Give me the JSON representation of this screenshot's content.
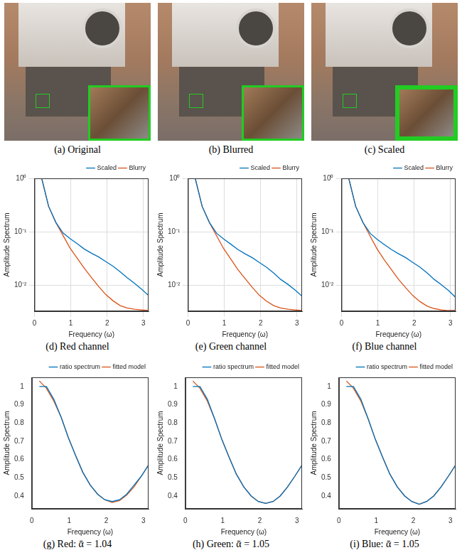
{
  "images": [
    {
      "caption": "(a) Original"
    },
    {
      "caption": "(b) Blurred"
    },
    {
      "caption": "(c) Scaled"
    }
  ],
  "chart_data": [
    {
      "type": "line",
      "caption": "(d) Red channel",
      "x_label": "Frequency (ω)",
      "y_label": "Amplitude Spectrum",
      "x": [
        0.2,
        0.39,
        0.59,
        0.79,
        0.98,
        1.18,
        1.37,
        1.57,
        1.77,
        1.96,
        2.16,
        2.36,
        2.55,
        2.75,
        2.95,
        3.14
      ],
      "series": [
        {
          "name": "Scaled",
          "color": "#0072bd",
          "values": [
            1.0,
            0.3,
            0.15,
            0.095,
            0.075,
            0.06,
            0.048,
            0.04,
            0.034,
            0.028,
            0.023,
            0.018,
            0.014,
            0.011,
            0.0085,
            0.0065
          ]
        },
        {
          "name": "Blurry",
          "color": "#d95319",
          "values": [
            1.0,
            0.3,
            0.15,
            0.085,
            0.05,
            0.032,
            0.021,
            0.014,
            0.0095,
            0.0068,
            0.0052,
            0.0042,
            0.0038,
            0.0036,
            0.0035,
            0.0034
          ]
        }
      ],
      "xlim": [
        0,
        3.14
      ],
      "xticks": [
        0,
        1,
        2,
        3
      ],
      "ylim": [
        0.0033,
        1
      ],
      "yticks": [
        {
          "value": 0.01,
          "label": "10⁻²"
        },
        {
          "value": 0.1,
          "label": "10⁻¹"
        },
        {
          "value": 1,
          "label": "10⁰"
        }
      ],
      "log": "y",
      "grid": true,
      "legend": "top"
    },
    {
      "type": "line",
      "caption": "(e) Green channel",
      "x_label": "Frequency (ω)",
      "y_label": "Amplitude Spectrum",
      "x": [
        0.2,
        0.39,
        0.59,
        0.79,
        0.98,
        1.18,
        1.37,
        1.57,
        1.77,
        1.96,
        2.16,
        2.36,
        2.55,
        2.75,
        2.95,
        3.14
      ],
      "series": [
        {
          "name": "Scaled",
          "color": "#0072bd",
          "values": [
            1.0,
            0.3,
            0.15,
            0.094,
            0.074,
            0.059,
            0.047,
            0.039,
            0.033,
            0.027,
            0.022,
            0.017,
            0.013,
            0.0105,
            0.0082,
            0.0063
          ]
        },
        {
          "name": "Blurry",
          "color": "#d95319",
          "values": [
            1.0,
            0.3,
            0.15,
            0.084,
            0.049,
            0.031,
            0.02,
            0.0135,
            0.0092,
            0.0066,
            0.0051,
            0.0042,
            0.0038,
            0.0036,
            0.0035,
            0.0034
          ]
        }
      ],
      "xlim": [
        0,
        3.14
      ],
      "xticks": [
        0,
        1,
        2,
        3
      ],
      "ylim": [
        0.0033,
        1
      ],
      "yticks": [
        {
          "value": 0.01,
          "label": "10⁻²"
        },
        {
          "value": 0.1,
          "label": "10⁻¹"
        },
        {
          "value": 1,
          "label": "10⁰"
        }
      ],
      "log": "y",
      "grid": true,
      "legend": "top"
    },
    {
      "type": "line",
      "caption": "(f) Blue channel",
      "x_label": "Frequency (ω)",
      "y_label": "Amplitude Spectrum",
      "x": [
        0.2,
        0.39,
        0.59,
        0.79,
        0.98,
        1.18,
        1.37,
        1.57,
        1.77,
        1.96,
        2.16,
        2.36,
        2.55,
        2.75,
        2.95,
        3.14
      ],
      "series": [
        {
          "name": "Scaled",
          "color": "#0072bd",
          "values": [
            1.0,
            0.3,
            0.15,
            0.094,
            0.073,
            0.058,
            0.047,
            0.039,
            0.033,
            0.027,
            0.022,
            0.017,
            0.013,
            0.0103,
            0.008,
            0.006
          ]
        },
        {
          "name": "Blurry",
          "color": "#d95319",
          "values": [
            1.0,
            0.3,
            0.15,
            0.083,
            0.048,
            0.03,
            0.02,
            0.013,
            0.009,
            0.0065,
            0.005,
            0.0041,
            0.0037,
            0.0035,
            0.0034,
            0.0034
          ]
        }
      ],
      "xlim": [
        0,
        3.14
      ],
      "xticks": [
        0,
        1,
        2,
        3
      ],
      "ylim": [
        0.0033,
        1
      ],
      "yticks": [
        {
          "value": 0.01,
          "label": "10⁻²"
        },
        {
          "value": 0.1,
          "label": "10⁻¹"
        },
        {
          "value": 1,
          "label": "10⁰"
        }
      ],
      "log": "y",
      "grid": true,
      "legend": "top"
    },
    {
      "type": "line",
      "caption": "(g) Red: ᾱ = 1.04",
      "x_label": "Frequency (ω)",
      "y_label": "Amplitude Spectrum",
      "x": [
        0.2,
        0.39,
        0.59,
        0.79,
        0.98,
        1.18,
        1.37,
        1.57,
        1.77,
        1.96,
        2.16,
        2.36,
        2.55,
        2.75,
        2.95,
        3.14
      ],
      "series": [
        {
          "name": "ratio spectrum",
          "color": "#0072bd",
          "values": [
            1.0,
            1.0,
            0.93,
            0.83,
            0.72,
            0.62,
            0.53,
            0.46,
            0.41,
            0.38,
            0.37,
            0.38,
            0.41,
            0.46,
            0.51,
            0.57
          ]
        },
        {
          "name": "fitted model",
          "color": "#d95319",
          "values": [
            1.03,
            0.99,
            0.92,
            0.83,
            0.72,
            0.62,
            0.53,
            0.46,
            0.41,
            0.38,
            0.365,
            0.375,
            0.405,
            0.45,
            0.51,
            0.57
          ]
        }
      ],
      "xlim": [
        0,
        3.14
      ],
      "xticks": [
        0,
        1,
        2,
        3
      ],
      "ylim": [
        0.33,
        1.05
      ],
      "yticks": [
        0.4,
        0.5,
        0.6,
        0.7,
        0.8,
        0.9,
        1
      ],
      "grid": false,
      "legend": "top"
    },
    {
      "type": "line",
      "caption": "(h) Green: ᾱ = 1.05",
      "x_label": "Frequency (ω)",
      "y_label": "Amplitude Spectrum",
      "x": [
        0.2,
        0.39,
        0.59,
        0.79,
        0.98,
        1.18,
        1.37,
        1.57,
        1.77,
        1.96,
        2.16,
        2.36,
        2.55,
        2.75,
        2.95,
        3.14
      ],
      "series": [
        {
          "name": "ratio spectrum",
          "color": "#0072bd",
          "values": [
            1.0,
            1.0,
            0.93,
            0.82,
            0.71,
            0.61,
            0.52,
            0.45,
            0.4,
            0.37,
            0.36,
            0.37,
            0.4,
            0.45,
            0.51,
            0.57
          ]
        },
        {
          "name": "fitted model",
          "color": "#d95319",
          "values": [
            1.03,
            0.99,
            0.92,
            0.82,
            0.71,
            0.61,
            0.52,
            0.45,
            0.4,
            0.37,
            0.36,
            0.37,
            0.4,
            0.45,
            0.51,
            0.57
          ]
        }
      ],
      "xlim": [
        0,
        3.14
      ],
      "xticks": [
        0,
        1,
        2,
        3
      ],
      "ylim": [
        0.33,
        1.05
      ],
      "yticks": [
        0.4,
        0.5,
        0.6,
        0.7,
        0.8,
        0.9,
        1
      ],
      "grid": false,
      "legend": "top"
    },
    {
      "type": "line",
      "caption": "(i) Blue: ᾱ = 1.05",
      "x_label": "Frequency (ω)",
      "y_label": "Amplitude Spectrum",
      "x": [
        0.2,
        0.39,
        0.59,
        0.79,
        0.98,
        1.18,
        1.37,
        1.57,
        1.77,
        1.96,
        2.16,
        2.36,
        2.55,
        2.75,
        2.95,
        3.14
      ],
      "series": [
        {
          "name": "ratio spectrum",
          "color": "#0072bd",
          "values": [
            1.0,
            1.0,
            0.93,
            0.82,
            0.71,
            0.61,
            0.52,
            0.45,
            0.4,
            0.37,
            0.355,
            0.37,
            0.4,
            0.45,
            0.51,
            0.57
          ]
        },
        {
          "name": "fitted model",
          "color": "#d95319",
          "values": [
            1.03,
            0.99,
            0.92,
            0.82,
            0.71,
            0.61,
            0.52,
            0.45,
            0.4,
            0.37,
            0.355,
            0.37,
            0.4,
            0.45,
            0.51,
            0.57
          ]
        }
      ],
      "xlim": [
        0,
        3.14
      ],
      "xticks": [
        0,
        1,
        2,
        3
      ],
      "ylim": [
        0.33,
        1.05
      ],
      "yticks": [
        0.4,
        0.5,
        0.6,
        0.7,
        0.8,
        0.9,
        1
      ],
      "grid": false,
      "legend": "top"
    }
  ]
}
